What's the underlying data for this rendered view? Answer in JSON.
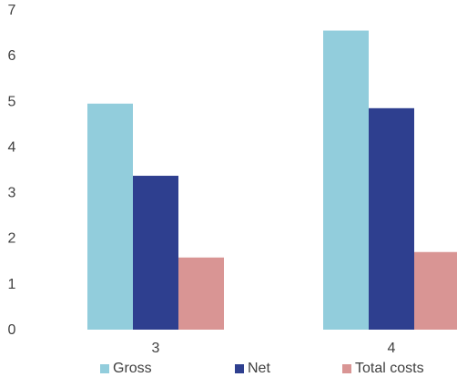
{
  "chart_data": {
    "type": "bar",
    "title": "",
    "xlabel": "",
    "ylabel": "",
    "categories": [
      "3",
      "4"
    ],
    "series": [
      {
        "name": "Gross",
        "values": [
          4.95,
          6.55
        ],
        "color": "#92CDDC"
      },
      {
        "name": "Net",
        "values": [
          3.37,
          4.85
        ],
        "color": "#2E3F8F"
      },
      {
        "name": "Total costs",
        "values": [
          1.58,
          1.7
        ],
        "color": "#D99594"
      }
    ],
    "ylim": [
      0,
      7
    ],
    "yticks": [
      "0",
      "1",
      "2",
      "3",
      "4",
      "5",
      "6",
      "7"
    ],
    "grid": false,
    "legend_position": "bottom"
  }
}
